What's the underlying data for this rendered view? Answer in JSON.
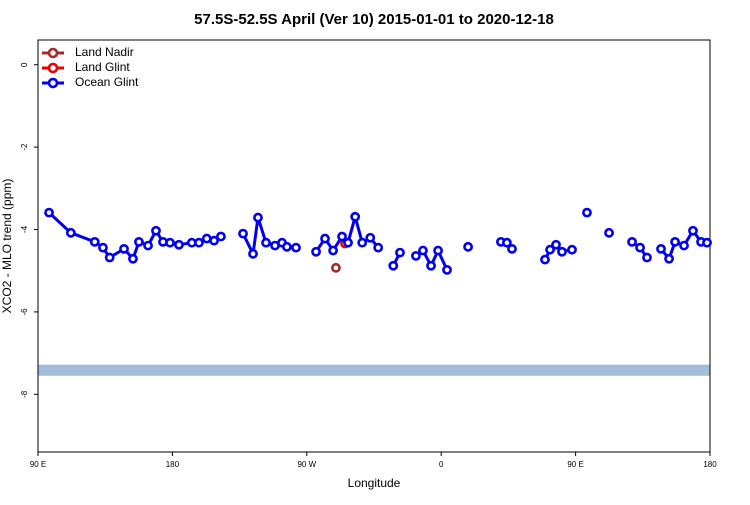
{
  "chart_data": {
    "type": "line",
    "title": "57.5S-52.5S April (Ver 10)   2015-01-01 to 2020-12-18",
    "x_label": "Longitude",
    "y_label": "XCO2 - MLO trend (ppm)",
    "xlim": [
      90,
      540
    ],
    "ylim": [
      -9.4,
      0.6
    ],
    "xticks": [
      {
        "value": 90,
        "label": "90 E"
      },
      180,
      {
        "value": 270,
        "label": "90 W"
      },
      {
        "value": 360,
        "label": "0"
      },
      {
        "value": 450,
        "label": "90 E"
      },
      {
        "value": 540,
        "label": "180"
      }
    ],
    "yticks": [
      -8,
      -6,
      -4,
      -2,
      0
    ],
    "legend": "top-left",
    "shaded_band": [
      -7.55,
      -7.28
    ],
    "shaded_band_color": "#a4bcdc",
    "series": [
      {
        "name": "Land Nadir",
        "color": "#a52a2a",
        "x": [
          289.5
        ],
        "values": [
          -4.93
        ]
      },
      {
        "name": "Land Glint",
        "color": "#ee0000",
        "x": [
          295.6
        ],
        "values": [
          -4.34
        ]
      },
      {
        "name": "Ocean Glint",
        "color": "#0000ee",
        "x": [
          97.4,
          112,
          128,
          133.5,
          138,
          147.6,
          153.6,
          157.6,
          163.7,
          169,
          173.7,
          178.4,
          184.4,
          193,
          197.8,
          203,
          207.9,
          212.5,
          null,
          227.3,
          234,
          237.3,
          242.7,
          248.7,
          253.4,
          256.7,
          262.8,
          null,
          276.2,
          282.2,
          287.6,
          293.6,
          297.6,
          302.4,
          307.1,
          312.5,
          317.8,
          null,
          327.9,
          332.4,
          null,
          343.1,
          347.8,
          353.2,
          357.9,
          363.9,
          null,
          378,
          null,
          400,
          404,
          407.4,
          null,
          429.5,
          432.9,
          436.9,
          440.9,
          447.6,
          null,
          457.6,
          null,
          472.4,
          null,
          487.8,
          493.2,
          497.8,
          null,
          507.2,
          512.6,
          516.6,
          522.6,
          528.6,
          534,
          538
        ],
        "values": [
          -3.59,
          -4.08,
          -4.3,
          -4.44,
          -4.68,
          -4.47,
          -4.71,
          -4.3,
          -4.39,
          -4.03,
          -4.3,
          -4.32,
          -4.37,
          -4.32,
          -4.32,
          -4.22,
          -4.27,
          -4.17,
          null,
          -4.1,
          -4.59,
          -3.71,
          -4.32,
          -4.39,
          -4.32,
          -4.42,
          -4.44,
          null,
          -4.54,
          -4.22,
          -4.51,
          -4.17,
          -4.32,
          -3.69,
          -4.32,
          -4.2,
          -4.44,
          null,
          -4.88,
          -4.56,
          null,
          -4.64,
          -4.51,
          -4.88,
          -4.51,
          -4.98,
          null,
          -4.42,
          null,
          -4.3,
          -4.32,
          -4.47,
          null,
          -4.73,
          -4.49,
          -4.37,
          -4.54,
          -4.49,
          null,
          -3.59,
          null,
          -4.08,
          null,
          -4.3,
          -4.44,
          -4.68,
          null,
          -4.47,
          -4.71,
          -4.3,
          -4.39,
          -4.03,
          -4.3,
          -4.32
        ]
      }
    ]
  }
}
